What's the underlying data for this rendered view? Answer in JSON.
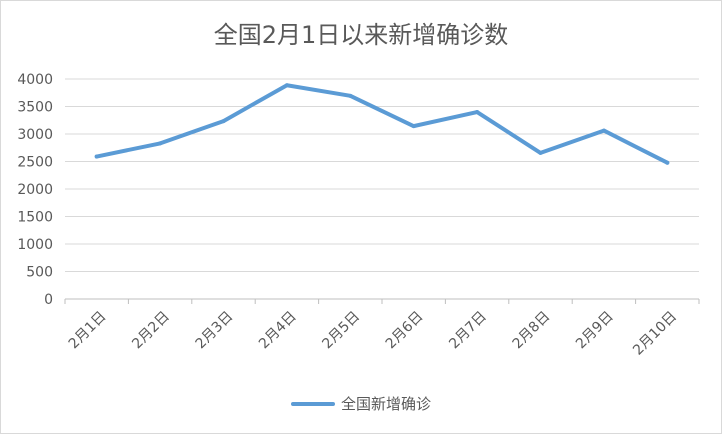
{
  "chart_data": {
    "type": "line",
    "title": "全国2月1日以来新增确诊数",
    "xlabel": "",
    "ylabel": "",
    "categories": [
      "2月1日",
      "2月2日",
      "2月3日",
      "2月4日",
      "2月5日",
      "2月6日",
      "2月7日",
      "2月8日",
      "2月9日",
      "2月10日"
    ],
    "series": [
      {
        "name": "全国新增确诊",
        "values": [
          2590,
          2829,
          3235,
          3887,
          3694,
          3143,
          3399,
          2656,
          3062,
          2478
        ],
        "color": "#5b9bd5"
      }
    ],
    "ylim": [
      0,
      4000
    ],
    "yticks": [
      "0",
      "500",
      "1000",
      "1500",
      "2000",
      "2500",
      "3000",
      "3500",
      "4000"
    ],
    "grid": true,
    "legend": "bottom"
  }
}
